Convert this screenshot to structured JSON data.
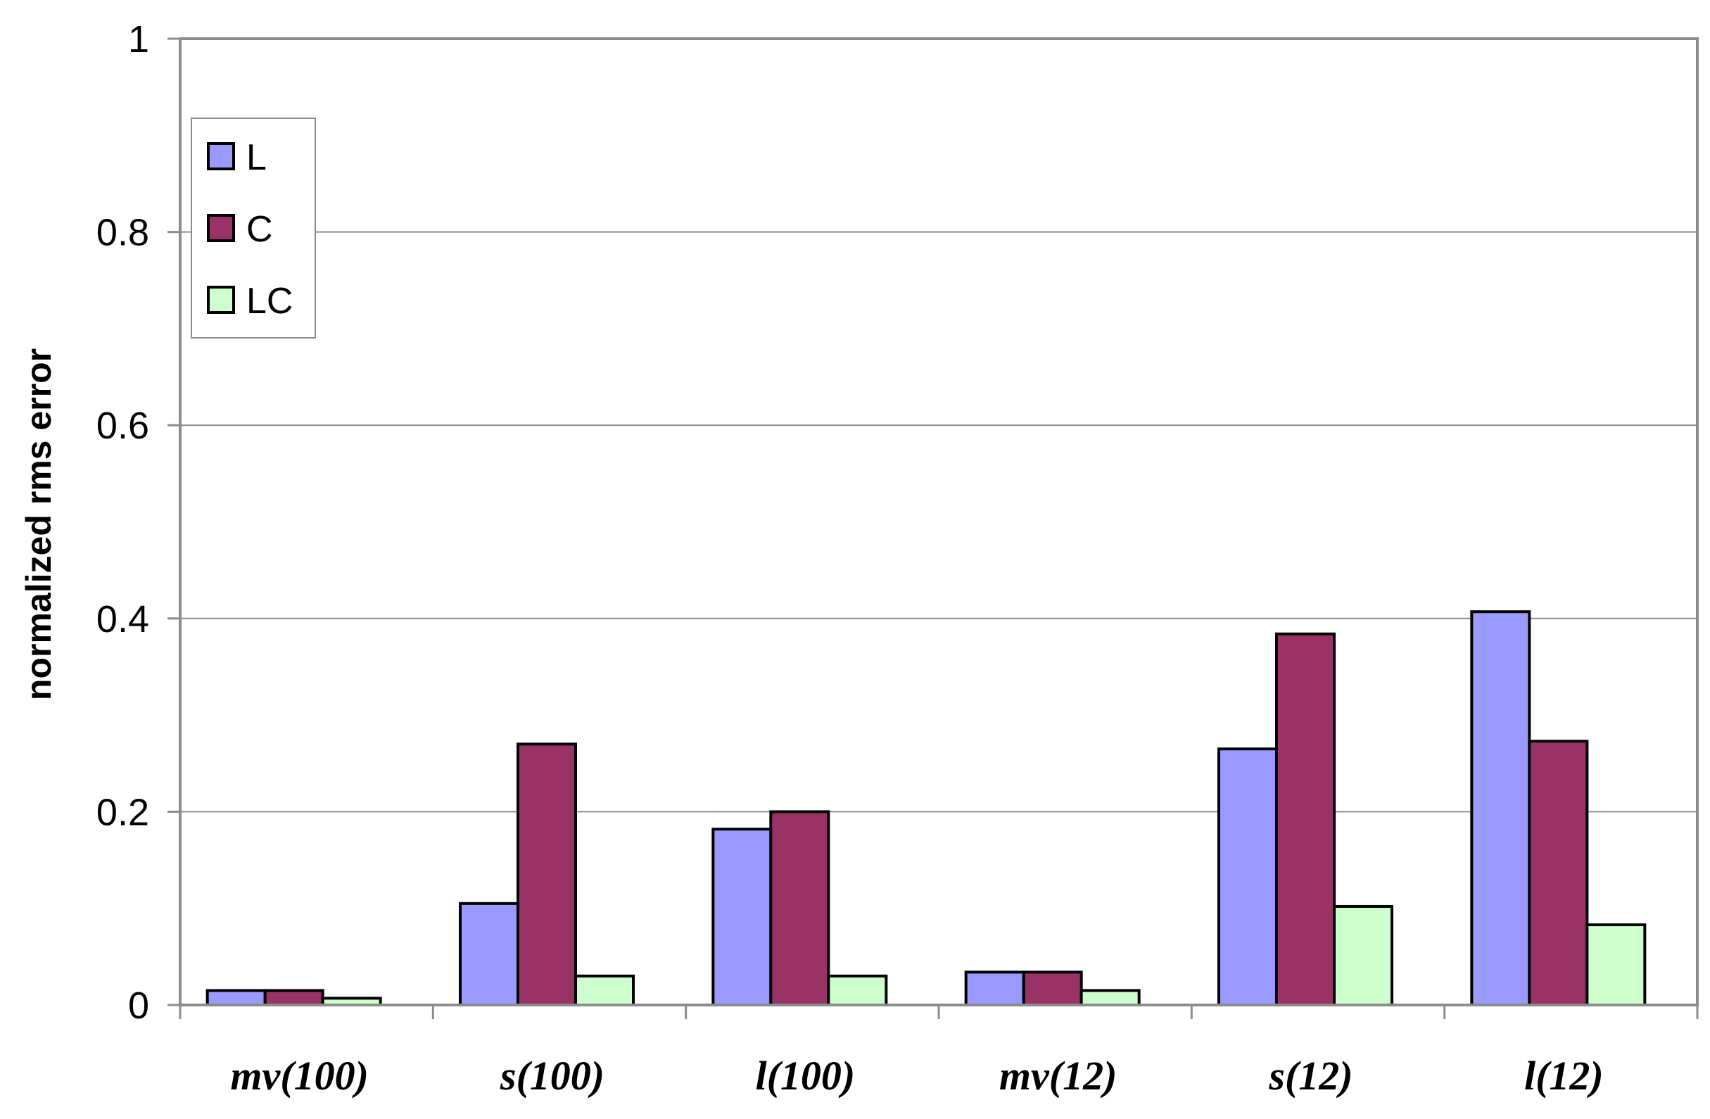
{
  "chart_data": {
    "type": "bar",
    "title": "",
    "xlabel": "",
    "ylabel": "normalized rms error",
    "ylim": [
      0,
      1
    ],
    "yticks": [
      "0",
      "0.2",
      "0.4",
      "0.6",
      "0.8",
      "1"
    ],
    "grid": true,
    "legend_position": "top-left",
    "categories": [
      "mv(100)",
      "s(100)",
      "l(100)",
      "mv(12)",
      "s(12)",
      "l(12)"
    ],
    "series": [
      {
        "name": "L",
        "color": "#9999ff",
        "values": [
          0.015,
          0.105,
          0.182,
          0.034,
          0.265,
          0.407
        ]
      },
      {
        "name": "C",
        "color": "#993366",
        "values": [
          0.015,
          0.27,
          0.2,
          0.034,
          0.384,
          0.273
        ]
      },
      {
        "name": "LC",
        "color": "#ccffcc",
        "values": [
          0.007,
          0.03,
          0.03,
          0.015,
          0.102,
          0.083
        ]
      }
    ]
  }
}
